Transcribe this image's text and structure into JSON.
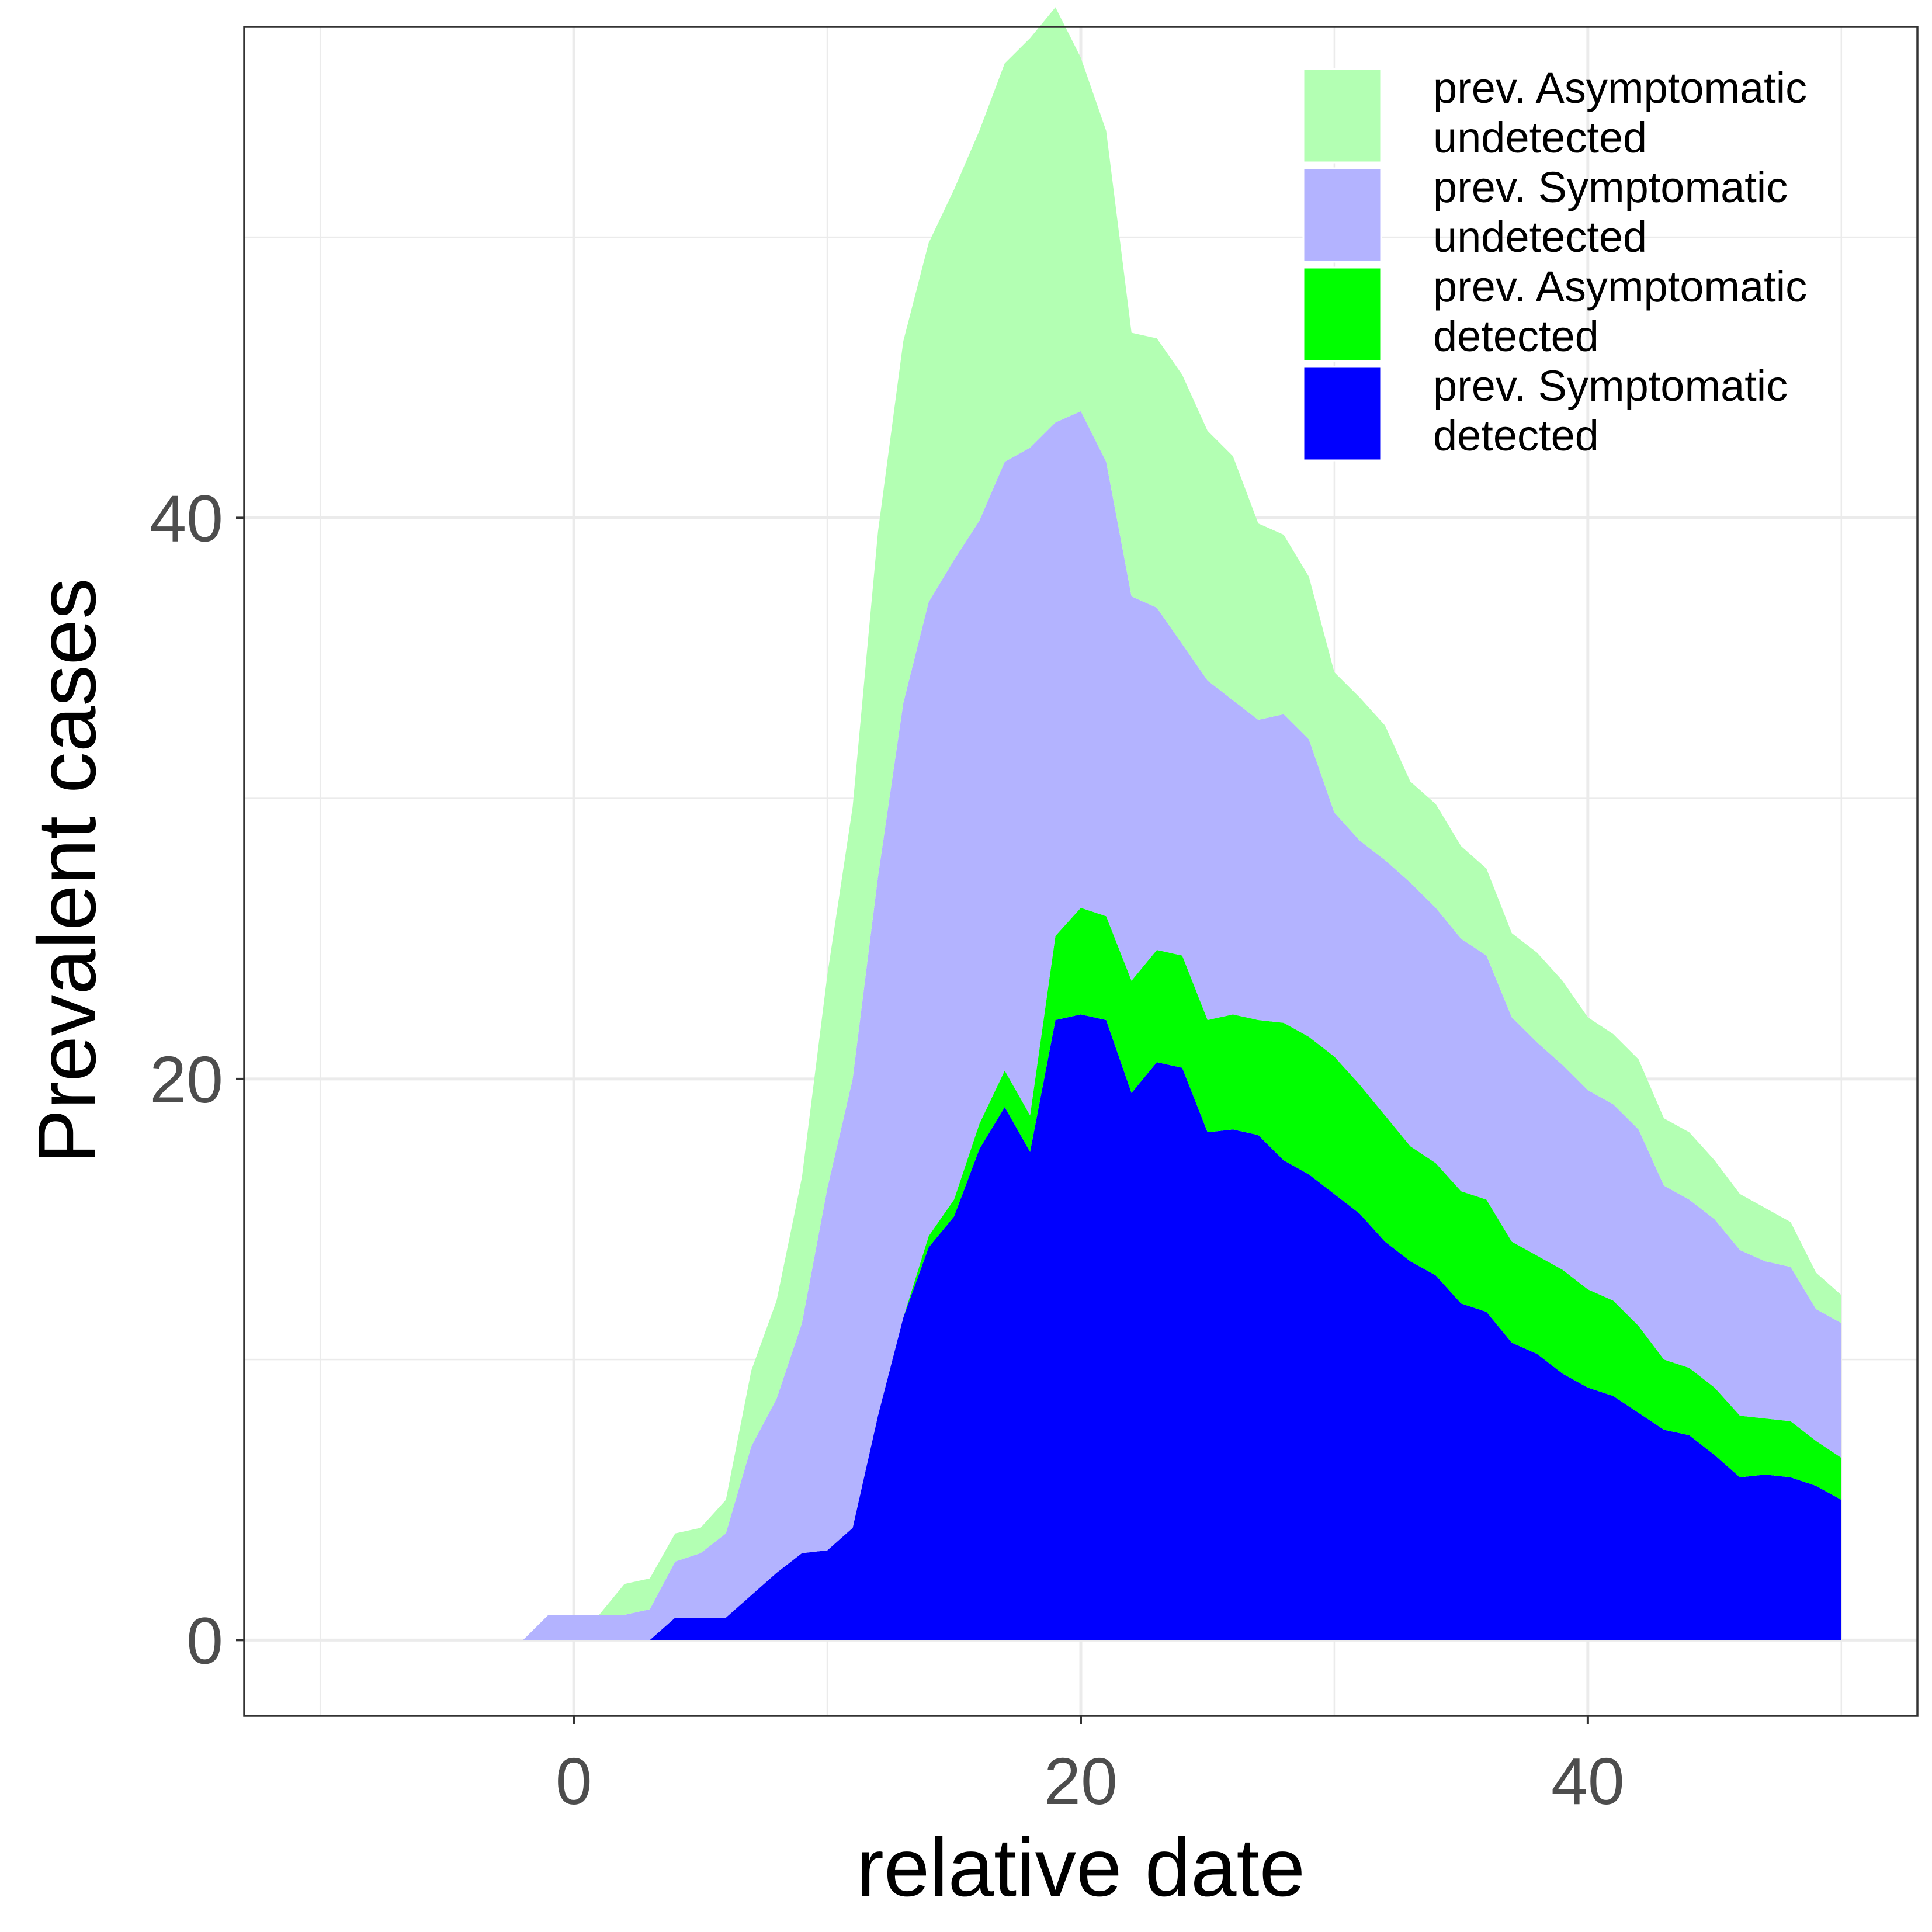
{
  "chart_data": {
    "type": "area",
    "stacked": true,
    "title": "",
    "xlabel": "relative date",
    "ylabel": "Prevalent cases",
    "xlim": [
      -13,
      53
    ],
    "ylim": [
      -2.7,
      57.5
    ],
    "x_ticks": [
      0,
      20,
      40
    ],
    "y_ticks": [
      0,
      20,
      40
    ],
    "x_minor_gridlines": [
      -10,
      10,
      30,
      50
    ],
    "y_minor_gridlines": [
      10,
      30,
      50
    ],
    "grid": true,
    "legend_position": "top-right",
    "x": [
      -2,
      -1,
      0,
      1,
      2,
      3,
      4,
      5,
      6,
      7,
      8,
      9,
      10,
      11,
      12,
      13,
      14,
      15,
      16,
      17,
      18,
      19,
      20,
      21,
      22,
      23,
      24,
      25,
      26,
      27,
      28,
      29,
      30,
      31,
      32,
      33,
      34,
      35,
      36,
      37,
      38,
      39,
      40,
      41,
      42,
      43,
      44,
      45,
      46,
      47,
      48,
      49,
      50
    ],
    "series": [
      {
        "name": "prev. Symptomatic detected",
        "color": "#0000ff",
        "values": [
          0,
          0,
          0,
          0,
          0,
          0,
          0.8,
          0.8,
          0.8,
          1.6,
          2.4,
          3.1,
          3.2,
          4.0,
          8.0,
          11.5,
          14.0,
          15.1,
          17.5,
          19.0,
          17.4,
          22.1,
          22.3,
          22.1,
          19.5,
          20.6,
          20.4,
          18.1,
          18.2,
          18.0,
          17.1,
          16.6,
          15.9,
          15.2,
          14.2,
          13.5,
          13.0,
          12.0,
          11.7,
          10.6,
          10.2,
          9.5,
          9.0,
          8.7,
          8.1,
          7.5,
          7.3,
          6.6,
          5.8,
          5.9,
          5.8,
          5.5,
          5.0
        ]
      },
      {
        "name": "prev. Asymptomatic detected",
        "color": "#00ff00",
        "values": [
          0,
          0,
          0,
          0,
          0,
          0,
          0,
          0,
          0,
          0,
          0,
          0,
          0,
          0,
          0,
          0,
          0.4,
          0.6,
          0.9,
          1.3,
          1.3,
          3.0,
          3.8,
          3.7,
          4.0,
          4.0,
          4.0,
          4.0,
          4.1,
          4.1,
          4.9,
          4.9,
          4.9,
          4.6,
          4.5,
          4.1,
          4.0,
          4.0,
          4.0,
          3.6,
          3.5,
          3.7,
          3.5,
          3.4,
          3.1,
          2.5,
          2.4,
          2.4,
          2.2,
          2.0,
          2.0,
          1.6,
          1.5
        ]
      },
      {
        "name": "prev. Symptomatic undetected",
        "color": "#b3b3ff",
        "values": [
          0,
          0.9,
          0.9,
          0.9,
          0.9,
          1.1,
          2.0,
          2.3,
          3.0,
          5.3,
          6.2,
          8.2,
          12.9,
          16.0,
          19.2,
          21.9,
          22.6,
          22.8,
          21.5,
          21.7,
          23.8,
          18.3,
          17.7,
          16.2,
          13.7,
          12.2,
          11.1,
          12.1,
          11.2,
          10.7,
          11.0,
          10.6,
          8.7,
          8.7,
          9.1,
          9.4,
          9.1,
          9.0,
          8.7,
          8.0,
          7.6,
          7.3,
          7.1,
          7.0,
          7.0,
          6.2,
          6.0,
          6.0,
          5.9,
          5.6,
          5.5,
          4.7,
          4.8
        ]
      },
      {
        "name": "prev. Asymptomatic undetected",
        "color": "#b3ffb3",
        "values": [
          0,
          0,
          0,
          0,
          1.1,
          1.1,
          1.0,
          0.9,
          1.2,
          2.7,
          3.5,
          5.2,
          7.6,
          9.7,
          12.3,
          12.9,
          12.8,
          13.2,
          13.9,
          14.2,
          14.6,
          14.8,
          12.6,
          11.8,
          9.4,
          9.6,
          9.6,
          8.9,
          8.7,
          7.0,
          6.4,
          5.8,
          5.0,
          5.1,
          4.8,
          3.6,
          3.7,
          3.3,
          3.1,
          3.0,
          3.2,
          3.0,
          2.6,
          2.5,
          2.5,
          2.4,
          2.4,
          2.1,
          2.0,
          1.9,
          1.6,
          1.3,
          1.0
        ]
      }
    ],
    "legend": [
      {
        "label_line1": "prev. Asymptomatic",
        "label_line2": "undetected",
        "color": "#b3ffb3"
      },
      {
        "label_line1": "prev. Symptomatic",
        "label_line2": "undetected",
        "color": "#b3b3ff"
      },
      {
        "label_line1": "prev. Asymptomatic",
        "label_line2": "detected",
        "color": "#00ff00"
      },
      {
        "label_line1": "prev. Symptomatic",
        "label_line2": "detected",
        "color": "#0000ff"
      }
    ]
  }
}
